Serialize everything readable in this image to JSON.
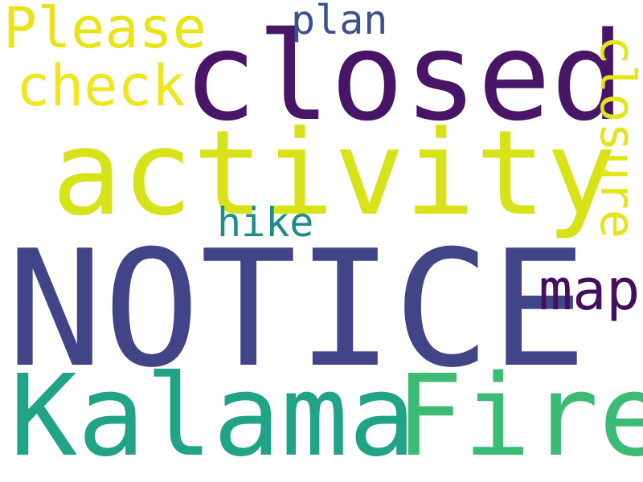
{
  "wordcloud": {
    "words": [
      {
        "key": "notice",
        "text": "NOTICE",
        "color": "#414487"
      },
      {
        "key": "closed",
        "text": "closed",
        "color": "#481567"
      },
      {
        "key": "activity",
        "text": "activity",
        "color": "#d8e219"
      },
      {
        "key": "kalama",
        "text": "Kalama",
        "color": "#20a386"
      },
      {
        "key": "fire",
        "text": "Fire",
        "color": "#3cbb75"
      },
      {
        "key": "please",
        "text": "Please",
        "color": "#e8e419"
      },
      {
        "key": "check",
        "text": "check",
        "color": "#f0e51f"
      },
      {
        "key": "map",
        "text": "map",
        "color": "#440f5c"
      },
      {
        "key": "plan",
        "text": "plan",
        "color": "#3b528b"
      },
      {
        "key": "hike",
        "text": "hike",
        "color": "#1f8c8c"
      },
      {
        "key": "closure",
        "text": "closure",
        "color": "#e5e419"
      }
    ]
  }
}
